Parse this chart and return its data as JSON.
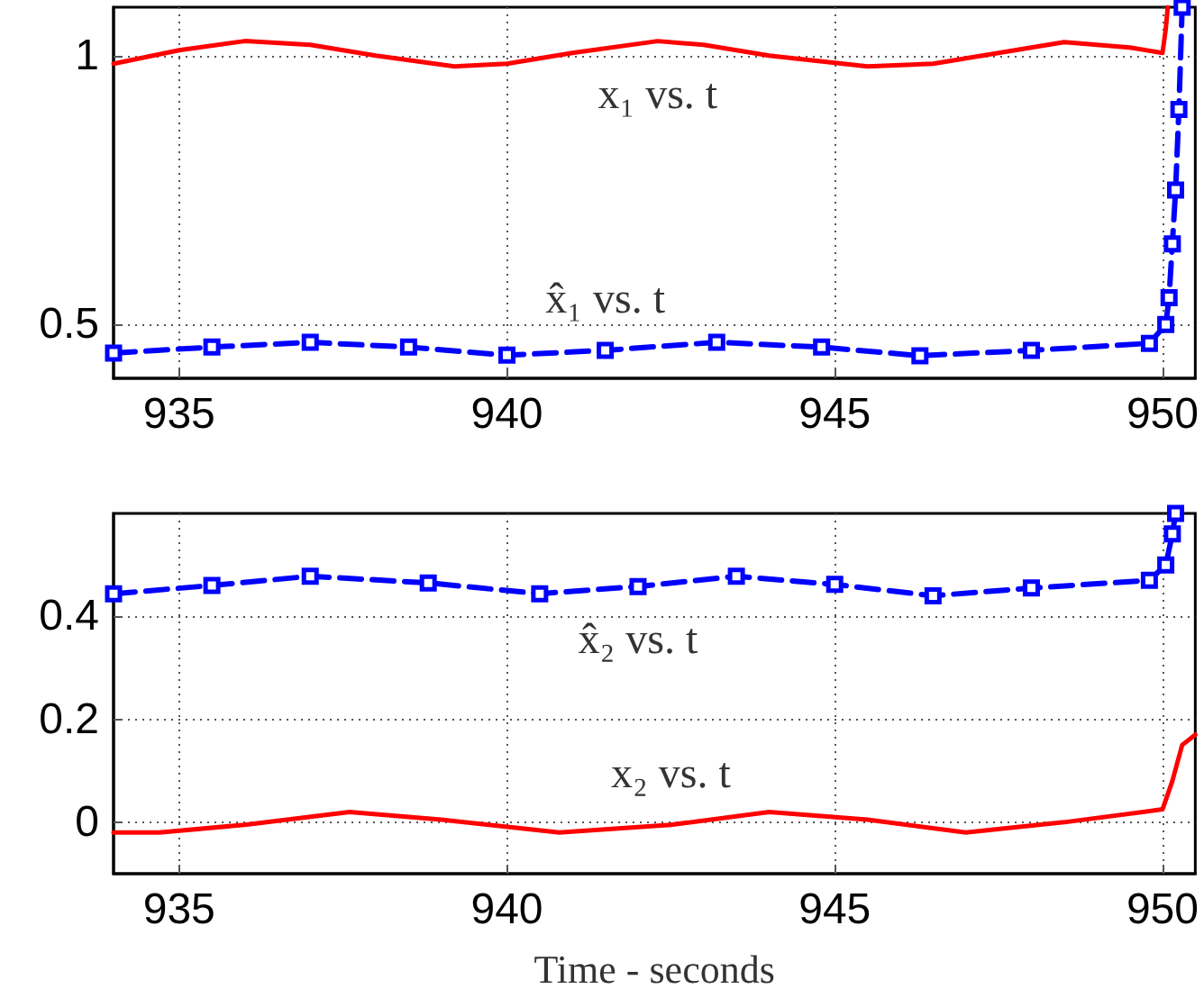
{
  "chart_data": [
    {
      "type": "line",
      "xlim": [
        934,
        950.5
      ],
      "xticks": [
        935,
        940,
        945,
        950
      ],
      "ylim": [
        0.4,
        1.09
      ],
      "yticks": [
        0.5,
        1
      ],
      "grid": true,
      "series": [
        {
          "name": "x₁ vs. t",
          "color": "#ff0000",
          "line_style": "solid",
          "marker": "none",
          "x": [
            934,
            935,
            936,
            937,
            938,
            939.2,
            940,
            941,
            942.3,
            943,
            944,
            945.5,
            946.5,
            947.5,
            948.5,
            949.5,
            950,
            950.05,
            950.08
          ],
          "values": [
            0.985,
            1.01,
            1.027,
            1.02,
            1.0,
            0.98,
            0.985,
            1.005,
            1.027,
            1.02,
            1.0,
            0.98,
            0.985,
            1.005,
            1.025,
            1.015,
            1.005,
            1.05,
            1.09
          ]
        },
        {
          "name": "x̂₁ vs. t",
          "color": "#0000ff",
          "line_style": "dashed",
          "marker": "square",
          "x": [
            934,
            935.5,
            937,
            938.5,
            940,
            941.5,
            943.2,
            944.8,
            946.3,
            948,
            949.8,
            950.05,
            950.1,
            950.15,
            950.2,
            950.25,
            950.3
          ],
          "values": [
            0.447,
            0.458,
            0.467,
            0.458,
            0.443,
            0.452,
            0.467,
            0.458,
            0.442,
            0.452,
            0.465,
            0.5,
            0.55,
            0.65,
            0.75,
            0.9,
            1.09
          ]
        }
      ]
    },
    {
      "type": "line",
      "xlim": [
        934,
        950.5
      ],
      "xticks": [
        935,
        940,
        945,
        950
      ],
      "ylim": [
        -0.1,
        0.6
      ],
      "yticks": [
        0,
        0.2,
        0.4
      ],
      "grid": true,
      "xlabel": "Time - seconds",
      "series": [
        {
          "name": "x̂₂ vs. t",
          "color": "#0000ff",
          "line_style": "dashed",
          "marker": "square",
          "x": [
            934,
            935.5,
            937,
            938.8,
            940.5,
            942,
            943.5,
            945,
            946.5,
            948,
            949.8,
            950.05,
            950.15,
            950.2
          ],
          "values": [
            0.444,
            0.46,
            0.478,
            0.465,
            0.444,
            0.458,
            0.478,
            0.462,
            0.44,
            0.455,
            0.47,
            0.5,
            0.56,
            0.6
          ]
        },
        {
          "name": "x₂ vs. t",
          "color": "#ff0000",
          "line_style": "solid",
          "marker": "none",
          "x": [
            934,
            934.7,
            936,
            937.6,
            939,
            940.8,
            942.5,
            944,
            945.5,
            947,
            948.5,
            950,
            950.15,
            950.3,
            950.5
          ],
          "values": [
            -0.02,
            -0.02,
            -0.005,
            0.02,
            0.005,
            -0.02,
            -0.005,
            0.02,
            0.005,
            -0.02,
            0.0,
            0.025,
            0.08,
            0.15,
            0.17
          ]
        }
      ]
    }
  ]
}
